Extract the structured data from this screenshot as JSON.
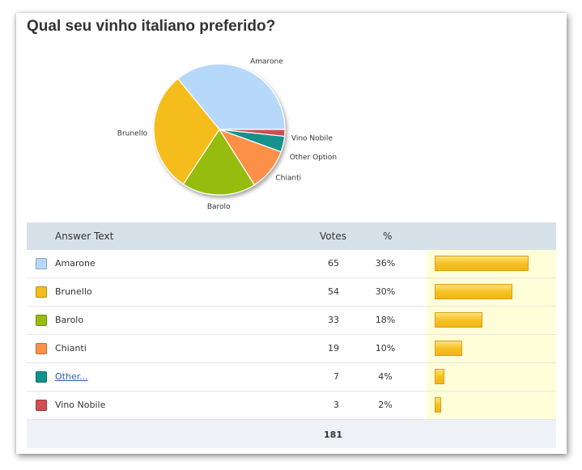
{
  "title": "Qual seu vinho italiano preferido?",
  "table": {
    "headers": {
      "answer": "Answer Text",
      "votes": "Votes",
      "percent": "%"
    },
    "total": "181"
  },
  "chart_data": {
    "type": "pie",
    "title": "Qual seu vinho italiano preferido?",
    "slices": [
      {
        "label": "Amarone",
        "value": 65,
        "percent_label": "36%",
        "color": "#b6d9fb"
      },
      {
        "label": "Brunello",
        "value": 54,
        "percent_label": "30%",
        "color": "#f5bd1f"
      },
      {
        "label": "Barolo",
        "value": 33,
        "percent_label": "18%",
        "color": "#96bd0d"
      },
      {
        "label": "Chianti",
        "value": 19,
        "percent_label": "10%",
        "color": "#fd9048"
      },
      {
        "label": "Other...",
        "pie_label": "Other Option",
        "value": 7,
        "percent_label": "4%",
        "color": "#13918b",
        "link": true
      },
      {
        "label": "Vino Nobile",
        "value": 3,
        "percent_label": "2%",
        "color": "#d14d52"
      }
    ],
    "total": 181
  }
}
